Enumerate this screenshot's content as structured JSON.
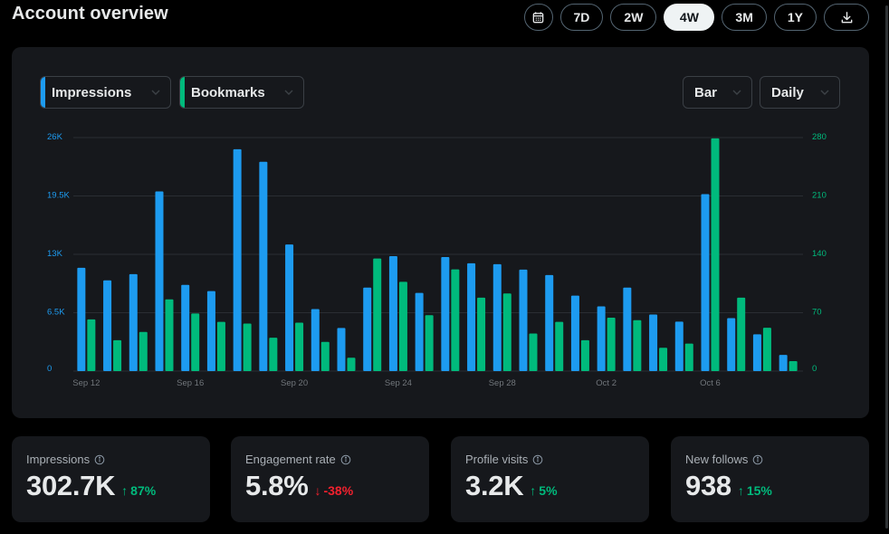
{
  "header": {
    "title": "Account overview"
  },
  "range_buttons": [
    {
      "label": "7D",
      "active": false
    },
    {
      "label": "2W",
      "active": false
    },
    {
      "label": "4W",
      "active": true
    },
    {
      "label": "3M",
      "active": false
    },
    {
      "label": "1Y",
      "active": false
    }
  ],
  "controls": {
    "metric1": {
      "label": "Impressions",
      "color": "#1d9bf0"
    },
    "metric2": {
      "label": "Bookmarks",
      "color": "#00ba7c"
    },
    "chart_type": "Bar",
    "interval": "Daily"
  },
  "chart_data": {
    "type": "bar",
    "categories": [
      "Sep 12",
      "Sep 13",
      "Sep 14",
      "Sep 15",
      "Sep 16",
      "Sep 17",
      "Sep 18",
      "Sep 19",
      "Sep 20",
      "Sep 21",
      "Sep 22",
      "Sep 23",
      "Sep 24",
      "Sep 25",
      "Sep 26",
      "Sep 27",
      "Sep 28",
      "Sep 29",
      "Sep 30",
      "Oct 1",
      "Oct 2",
      "Oct 3",
      "Oct 4",
      "Oct 5",
      "Oct 6",
      "Oct 7",
      "Oct 8",
      "Oct 9"
    ],
    "x_tick_labels": [
      {
        "index": 0,
        "label": "Sep 12"
      },
      {
        "index": 4,
        "label": "Sep 16"
      },
      {
        "index": 8,
        "label": "Sep 20"
      },
      {
        "index": 12,
        "label": "Sep 24"
      },
      {
        "index": 16,
        "label": "Sep 28"
      },
      {
        "index": 20,
        "label": "Oct 2"
      },
      {
        "index": 24,
        "label": "Oct 6"
      }
    ],
    "series": [
      {
        "name": "Impressions",
        "axis": "left",
        "color": "#1d9bf0",
        "values": [
          11500,
          10100,
          10800,
          20000,
          9600,
          8900,
          24700,
          23300,
          14100,
          6900,
          4800,
          9300,
          12800,
          8700,
          12700,
          12000,
          11900,
          11300,
          10700,
          8400,
          7200,
          9300,
          6300,
          5500,
          19700,
          5900,
          4100,
          1800
        ]
      },
      {
        "name": "Bookmarks",
        "axis": "right",
        "color": "#00ba7c",
        "values": [
          62,
          37,
          47,
          86,
          69,
          59,
          57,
          40,
          58,
          35,
          16,
          135,
          107,
          67,
          122,
          88,
          93,
          45,
          59,
          37,
          64,
          61,
          28,
          33,
          279,
          88,
          52,
          12
        ]
      }
    ],
    "y_left": {
      "min": 0,
      "max": 26000,
      "ticks": [
        "0",
        "6.5K",
        "13K",
        "19.5K",
        "26K"
      ]
    },
    "y_right": {
      "min": 0,
      "max": 280,
      "ticks": [
        "0",
        "70",
        "140",
        "210",
        "280"
      ]
    },
    "title": "",
    "xlabel": "",
    "ylabel": ""
  },
  "stats": [
    {
      "label": "Impressions",
      "value": "302.7K",
      "arrow": "↑",
      "delta": "87%",
      "direction": "up"
    },
    {
      "label": "Engagement rate",
      "value": "5.8%",
      "arrow": "↓",
      "delta": "-38%",
      "direction": "down"
    },
    {
      "label": "Profile visits",
      "value": "3.2K",
      "arrow": "↑",
      "delta": "5%",
      "direction": "up"
    },
    {
      "label": "New follows",
      "value": "938",
      "arrow": "↑",
      "delta": "15%",
      "direction": "up"
    }
  ]
}
